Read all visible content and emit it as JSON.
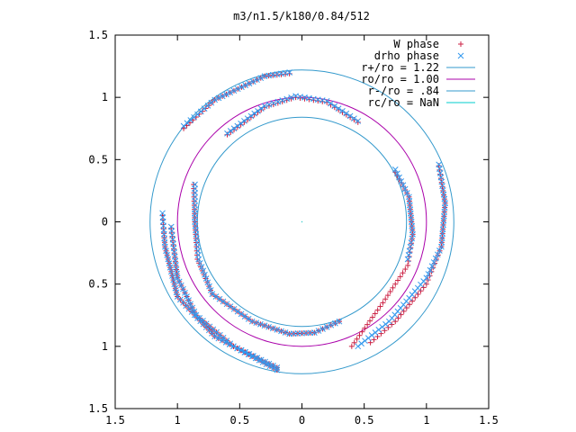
{
  "chart_data": {
    "type": "scatter",
    "title": "m3/n1.5/k180/0.84/512",
    "xlabel": "",
    "ylabel": "",
    "xlim": [
      -1.5,
      1.5
    ],
    "ylim": [
      -1.5,
      1.5
    ],
    "x_ticks": [
      {
        "value": -1.5,
        "label": "1.5"
      },
      {
        "value": -1.0,
        "label": "1"
      },
      {
        "value": -0.5,
        "label": "0.5"
      },
      {
        "value": 0.0,
        "label": "0"
      },
      {
        "value": 0.5,
        "label": "0.5"
      },
      {
        "value": 1.0,
        "label": "1"
      },
      {
        "value": 1.5,
        "label": "1.5"
      }
    ],
    "y_ticks": [
      {
        "value": 1.5,
        "label": "1.5"
      },
      {
        "value": 1.0,
        "label": "1"
      },
      {
        "value": 0.5,
        "label": "0.5"
      },
      {
        "value": 0.0,
        "label": "0"
      },
      {
        "value": -0.5,
        "label": "0.5"
      },
      {
        "value": -1.0,
        "label": "1"
      },
      {
        "value": -1.5,
        "label": "1.5"
      }
    ],
    "grid": false,
    "legend_position": "top-right",
    "circles": [
      {
        "label": "r+/ro = 1.22",
        "radius": 1.22,
        "color": "#3399cc"
      },
      {
        "label": "ro/ro = 1.00",
        "radius": 1.0,
        "color": "#aa00aa"
      },
      {
        "label": "r-/ro = .84",
        "radius": 0.84,
        "color": "#3399cc"
      },
      {
        "label": "rc/ro = NaN",
        "radius": null,
        "color": "#00cccc"
      }
    ],
    "series": [
      {
        "name": "W phase",
        "marker": "plus",
        "color": "#cc2244",
        "arms": [
          {
            "points": [
              [
                -0.95,
                0.75
              ],
              [
                -0.7,
                0.98
              ],
              [
                -0.3,
                1.17
              ],
              [
                -0.1,
                1.19
              ]
            ]
          },
          {
            "points": [
              [
                -0.6,
                0.7
              ],
              [
                -0.3,
                0.92
              ],
              [
                -0.05,
                1.0
              ],
              [
                0.2,
                0.96
              ],
              [
                0.45,
                0.8
              ]
            ]
          },
          {
            "points": [
              [
                -0.87,
                0.3
              ],
              [
                -0.86,
                0.0
              ],
              [
                -0.84,
                -0.3
              ],
              [
                -0.72,
                -0.58
              ],
              [
                -0.4,
                -0.8
              ],
              [
                -0.1,
                -0.9
              ],
              [
                0.1,
                -0.89
              ],
              [
                0.3,
                -0.8
              ]
            ]
          },
          {
            "points": [
              [
                -1.12,
                0.05
              ],
              [
                -1.1,
                -0.2
              ],
              [
                -1.0,
                -0.6
              ],
              [
                -0.7,
                -0.92
              ],
              [
                -0.4,
                -1.08
              ],
              [
                -0.2,
                -1.19
              ]
            ]
          },
          {
            "points": [
              [
                -1.05,
                -0.05
              ],
              [
                -1.0,
                -0.45
              ],
              [
                -0.85,
                -0.75
              ],
              [
                -0.55,
                -1.0
              ],
              [
                -0.2,
                -1.17
              ]
            ]
          },
          {
            "points": [
              [
                0.75,
                0.4
              ],
              [
                0.86,
                0.2
              ],
              [
                0.89,
                -0.1
              ],
              [
                0.85,
                -0.35
              ],
              [
                0.65,
                -0.65
              ],
              [
                0.4,
                -1.0
              ]
            ]
          },
          {
            "points": [
              [
                1.1,
                0.45
              ],
              [
                1.15,
                0.15
              ],
              [
                1.12,
                -0.2
              ],
              [
                1.0,
                -0.5
              ],
              [
                0.75,
                -0.8
              ],
              [
                0.55,
                -0.97
              ]
            ]
          }
        ]
      },
      {
        "name": "drho phase",
        "marker": "cross",
        "color": "#3399ee",
        "arms": [
          {
            "points": [
              [
                -0.95,
                0.77
              ],
              [
                -0.7,
                0.98
              ],
              [
                -0.3,
                1.17
              ],
              [
                -0.1,
                1.2
              ]
            ]
          },
          {
            "points": [
              [
                -0.6,
                0.71
              ],
              [
                -0.3,
                0.93
              ],
              [
                -0.05,
                1.01
              ],
              [
                0.2,
                0.97
              ],
              [
                0.45,
                0.81
              ]
            ]
          },
          {
            "points": [
              [
                -0.86,
                0.3
              ],
              [
                -0.86,
                0.0
              ],
              [
                -0.83,
                -0.3
              ],
              [
                -0.72,
                -0.58
              ],
              [
                -0.4,
                -0.8
              ],
              [
                -0.1,
                -0.9
              ],
              [
                0.1,
                -0.89
              ],
              [
                0.3,
                -0.8
              ]
            ]
          },
          {
            "points": [
              [
                -1.12,
                0.07
              ],
              [
                -1.1,
                -0.2
              ],
              [
                -1.0,
                -0.6
              ],
              [
                -0.7,
                -0.92
              ],
              [
                -0.4,
                -1.08
              ],
              [
                -0.2,
                -1.19
              ]
            ]
          },
          {
            "points": [
              [
                -1.05,
                -0.04
              ],
              [
                -1.0,
                -0.45
              ],
              [
                -0.85,
                -0.75
              ],
              [
                -0.55,
                -1.0
              ],
              [
                -0.2,
                -1.17
              ]
            ]
          },
          {
            "points": [
              [
                0.75,
                0.42
              ],
              [
                0.86,
                0.2
              ],
              [
                0.89,
                -0.1
              ],
              [
                0.85,
                -0.3
              ]
            ]
          },
          {
            "points": [
              [
                1.1,
                0.46
              ],
              [
                1.15,
                0.15
              ],
              [
                1.12,
                -0.2
              ],
              [
                1.0,
                -0.45
              ],
              [
                0.7,
                -0.8
              ],
              [
                0.45,
                -1.0
              ]
            ]
          }
        ]
      }
    ]
  }
}
